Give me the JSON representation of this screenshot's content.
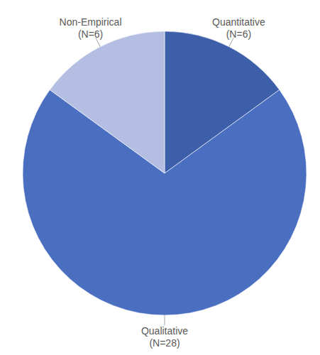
{
  "chart_data": {
    "type": "pie",
    "categories": [
      "Quantitative",
      "Qualitative",
      "Non-Empirical"
    ],
    "values": [
      6,
      28,
      6
    ],
    "value_labels": [
      "(N=6)",
      "(N=28)",
      "(N=6)"
    ],
    "colors": [
      "#3d5fa9",
      "#4a6ec0",
      "#b3bee2"
    ],
    "data_labels": true
  }
}
